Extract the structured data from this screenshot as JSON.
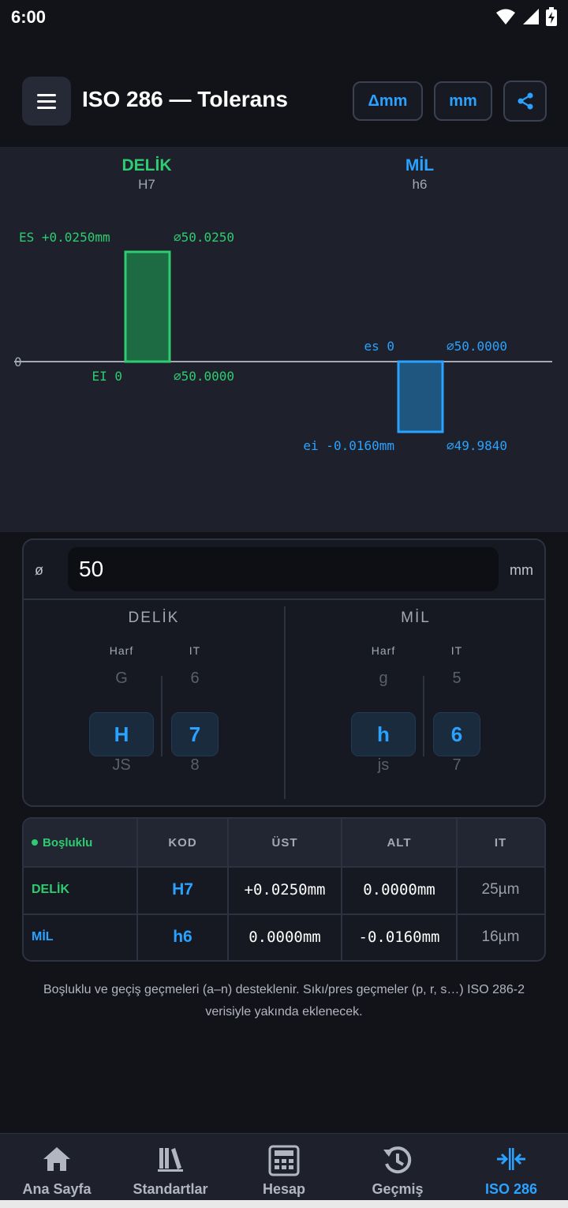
{
  "status_bar": {
    "time": "6:00"
  },
  "app_bar": {
    "title": "ISO 286 — Tolerans",
    "delta_unit_label": "Δmm",
    "unit_label": "mm",
    "icons": {
      "menu": "menu-icon",
      "share": "share-icon"
    }
  },
  "chart": {
    "hole_label": "DELİK",
    "hole_code": "H7",
    "shaft_label": "MİL",
    "shaft_code": "h6",
    "zero_label": "0",
    "hole_upper_label": "ES +0.0250mm",
    "hole_upper_dim": "⌀50.0250",
    "hole_lower_label": "EI 0",
    "hole_lower_dim": "⌀50.0000",
    "shaft_upper_label": "es 0",
    "shaft_upper_dim": "⌀50.0000",
    "shaft_lower_label": "ei -0.0160mm",
    "shaft_lower_dim": "⌀49.9840",
    "hole_es_mm": 0.025,
    "hole_ei_mm": 0.0,
    "shaft_es_mm": 0.0,
    "shaft_ei_mm": -0.016,
    "colors": {
      "hole": "#2ecc71",
      "shaft": "#2aa2ff"
    }
  },
  "input": {
    "phi_symbol": "ø",
    "diameter_value": "50",
    "unit": "mm"
  },
  "hole_picker": {
    "title": "DELİK",
    "letter_header": "Harf",
    "grade_header": "IT",
    "letter_prev": "G",
    "letter_selected": "H",
    "letter_next": "JS",
    "grade_prev": "6",
    "grade_selected": "7",
    "grade_next": "8"
  },
  "shaft_picker": {
    "title": "MİL",
    "letter_header": "Harf",
    "grade_header": "IT",
    "letter_prev": "g",
    "letter_selected": "h",
    "letter_next": "js",
    "grade_prev": "5",
    "grade_selected": "6",
    "grade_next": "7"
  },
  "result_table": {
    "fit_type": "Boşluklu",
    "headers": {
      "code": "KOD",
      "upper": "ÜST",
      "lower": "ALT",
      "it": "IT"
    },
    "rows": [
      {
        "label": "DELİK",
        "code": "H7",
        "upper": "+0.0250mm",
        "lower": "0.0000mm",
        "it": "25µm"
      },
      {
        "label": "MİL",
        "code": "h6",
        "upper": "0.0000mm",
        "lower": "-0.0160mm",
        "it": "16µm"
      }
    ]
  },
  "note": "Boşluklu ve geçiş geçmeleri (a–n) desteklenir. Sıkı/pres geçmeler (p, r, s…) ISO 286-2 verisiyle yakında eklenecek.",
  "bottom_nav": [
    {
      "label": "Ana Sayfa",
      "icon": "home-icon"
    },
    {
      "label": "Standartlar",
      "icon": "books-icon"
    },
    {
      "label": "Hesap",
      "icon": "calculator-icon"
    },
    {
      "label": "Geçmiş",
      "icon": "history-icon"
    },
    {
      "label": "ISO 286",
      "icon": "fit-arrows-icon"
    }
  ]
}
